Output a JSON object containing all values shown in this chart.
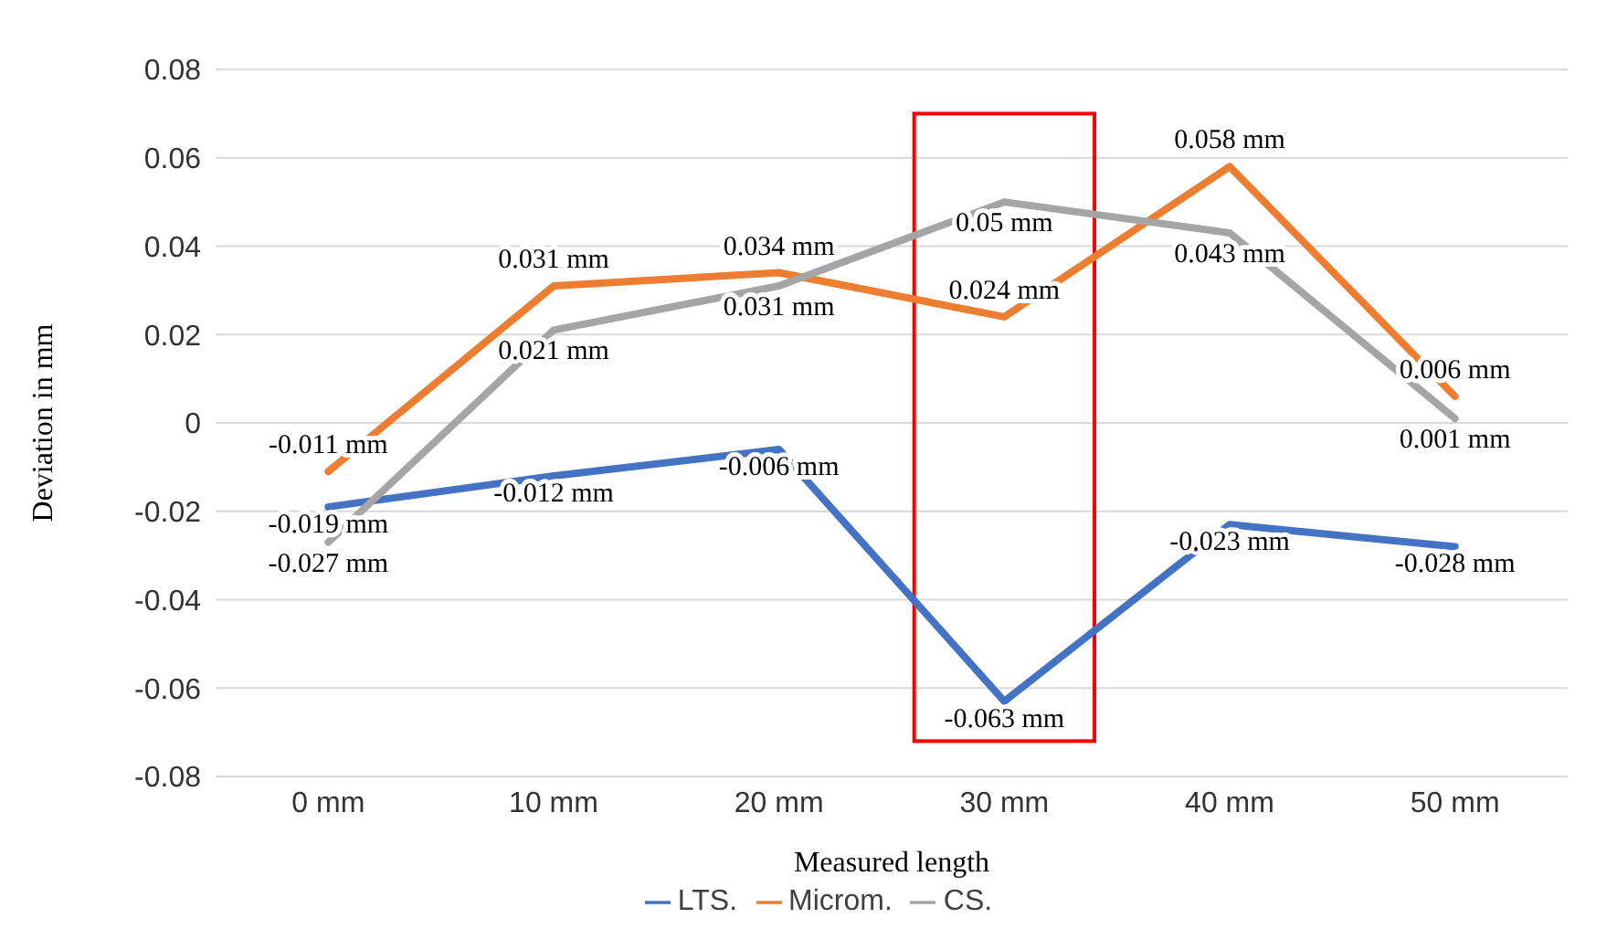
{
  "chart_data": {
    "type": "line",
    "xlabel": "Measured length",
    "ylabel": "Deviation in mm",
    "categories": [
      "0 mm",
      "10 mm",
      "20 mm",
      "30 mm",
      "40 mm",
      "50 mm"
    ],
    "series": [
      {
        "name": "LTS.",
        "color": "#4472c4",
        "values": [
          -0.019,
          -0.012,
          -0.006,
          -0.063,
          -0.023,
          -0.028
        ],
        "value_labels": [
          "-0.019 mm",
          "-0.012 mm",
          "-0.006 mm",
          "-0.063 mm",
          "-0.023 mm",
          "-0.028 mm"
        ]
      },
      {
        "name": "Microm.",
        "color": "#ed7d31",
        "values": [
          -0.011,
          0.031,
          0.034,
          0.024,
          0.058,
          0.006
        ],
        "value_labels": [
          "-0.011 mm",
          "0.031 mm",
          "0.034 mm",
          "0.024 mm",
          "0.058 mm",
          "0.006 mm"
        ]
      },
      {
        "name": "CS.",
        "color": "#a5a5a5",
        "values": [
          -0.027,
          0.021,
          0.031,
          0.05,
          0.043,
          0.001
        ],
        "value_labels": [
          "-0.027 mm",
          "0.021 mm",
          "0.031 mm",
          "0.05 mm",
          "0.043 mm",
          "0.001 mm"
        ]
      }
    ],
    "ylim": [
      -0.08,
      0.08
    ],
    "yticks": [
      -0.08,
      -0.06,
      -0.04,
      -0.02,
      0,
      0.02,
      0.04,
      0.06,
      0.08
    ],
    "grid": "y",
    "legend": "bottom",
    "marker": "none",
    "line_style": "solid"
  }
}
